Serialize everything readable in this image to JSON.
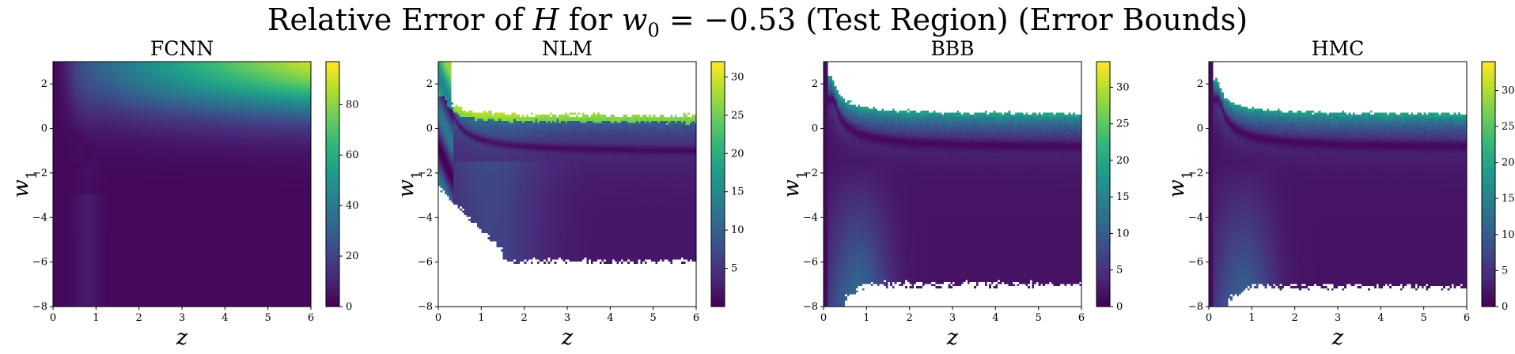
{
  "figure": {
    "title_pre": "Relative Error of ",
    "title_var": "H",
    "title_mid": " for ",
    "title_math": "w",
    "title_sub": "0",
    "title_eq": " = −0.53",
    "title_post": " (Test Region) (Error Bounds)"
  },
  "colormap": "viridis",
  "chart_data": [
    {
      "type": "heatmap",
      "title": "FCNN",
      "xlabel": "z",
      "ylabel": "w_1",
      "xlim": [
        0,
        6
      ],
      "ylim": [
        -8,
        3
      ],
      "x_ticks": [
        0,
        1,
        2,
        3,
        4,
        5,
        6
      ],
      "y_ticks": [
        2,
        0,
        -2,
        -4,
        -6,
        -8
      ],
      "colorbar_range": [
        0,
        97
      ],
      "colorbar_ticks": [
        0,
        20,
        40,
        60,
        80
      ],
      "description_values": {
        "max_region": "z≈6, w1≈3",
        "max": 97
      }
    },
    {
      "type": "heatmap",
      "title": "NLM",
      "xlabel": "z",
      "ylabel": "w_1",
      "xlim": [
        0,
        6
      ],
      "ylim": [
        -8,
        3
      ],
      "x_ticks": [
        0,
        1,
        2,
        3,
        4,
        5,
        6
      ],
      "y_ticks": [
        2,
        0,
        -2,
        -4,
        -6,
        -8
      ],
      "colorbar_range": [
        0,
        32
      ],
      "colorbar_ticks": [
        5,
        10,
        15,
        20,
        25,
        30
      ]
    },
    {
      "type": "heatmap",
      "title": "BBB",
      "xlabel": "z",
      "ylabel": "w_1",
      "xlim": [
        0,
        6
      ],
      "ylim": [
        -8,
        3
      ],
      "x_ticks": [
        0,
        1,
        2,
        3,
        4,
        5,
        6
      ],
      "y_ticks": [
        2,
        0,
        -2,
        -4,
        -6,
        -8
      ],
      "colorbar_range": [
        0,
        33.5
      ],
      "colorbar_ticks": [
        0,
        5,
        10,
        15,
        20,
        25,
        30
      ]
    },
    {
      "type": "heatmap",
      "title": "HMC",
      "xlabel": "z",
      "ylabel": "w_1",
      "xlim": [
        0,
        6
      ],
      "ylim": [
        -8,
        3
      ],
      "x_ticks": [
        0,
        1,
        2,
        3,
        4,
        5,
        6
      ],
      "y_ticks": [
        2,
        0,
        -2,
        -4,
        -6,
        -8
      ],
      "colorbar_range": [
        0,
        34
      ],
      "colorbar_ticks": [
        0,
        5,
        10,
        15,
        20,
        25,
        30
      ]
    }
  ]
}
